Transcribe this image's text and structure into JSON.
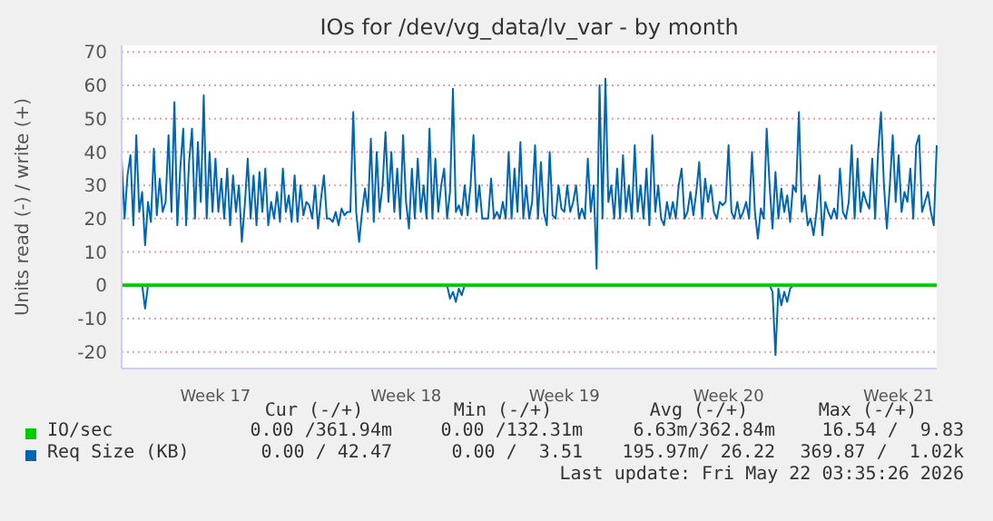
{
  "chart_data": {
    "type": "line",
    "title": "IOs for /dev/vg_data/lv_var - by month",
    "ylabel": "Units read (-) / write (+)",
    "categories": [
      null,
      null,
      null,
      null,
      null,
      null,
      null,
      null,
      null,
      null,
      null,
      null,
      null,
      null,
      null,
      null,
      null,
      null,
      null,
      null,
      null,
      null,
      null,
      null,
      null,
      null,
      null,
      null,
      null,
      null,
      null,
      null,
      "Week 17",
      null,
      null,
      null,
      null,
      null,
      null,
      null,
      null,
      null,
      null,
      null,
      null,
      null,
      null,
      null,
      null,
      null,
      null,
      null,
      null,
      null,
      null,
      null,
      null,
      null,
      null,
      null,
      null,
      null,
      null,
      null,
      null,
      null,
      null,
      null,
      null,
      null,
      null,
      null,
      null,
      null,
      null,
      null,
      null,
      null,
      null,
      null,
      null,
      null,
      null,
      null,
      null,
      null,
      null,
      null,
      null,
      null,
      null,
      null,
      null,
      null,
      null,
      null,
      null,
      "Week 18",
      null,
      null,
      null,
      null,
      null,
      null,
      null,
      null,
      null,
      null,
      null,
      null,
      null,
      null,
      null,
      null,
      null,
      null,
      null,
      null,
      null,
      null,
      null,
      null,
      null,
      null,
      null,
      null,
      null,
      null,
      null,
      null,
      null,
      null,
      null,
      null,
      null,
      null,
      null,
      null,
      null,
      null,
      null,
      null,
      null,
      null,
      null,
      null,
      null,
      null,
      null,
      null,
      null,
      "Week 19",
      null,
      null,
      null,
      null,
      null,
      null,
      null,
      null,
      null,
      null,
      null,
      null,
      null,
      null,
      null,
      null,
      null,
      null,
      null,
      null,
      null,
      null,
      null,
      null,
      null,
      null,
      null,
      null,
      null,
      null,
      null,
      null,
      null,
      null,
      null,
      null,
      null,
      null,
      null,
      null,
      null,
      null,
      null,
      null,
      null,
      null,
      null,
      null,
      null,
      null,
      null,
      null,
      null,
      null,
      null,
      "Week 20",
      null,
      null,
      null,
      null,
      null,
      null,
      null,
      null,
      null,
      null,
      null,
      null,
      null,
      null,
      null,
      null,
      null,
      null,
      null,
      null,
      null,
      null,
      null,
      null,
      null,
      null,
      null,
      null,
      null,
      null,
      null,
      null,
      null,
      null,
      null,
      null,
      null,
      null,
      null,
      null,
      null,
      null,
      null,
      null,
      null,
      null,
      null,
      null,
      null,
      null,
      null,
      null,
      null,
      null,
      null,
      null,
      null,
      "Week 21",
      null,
      null,
      null,
      null,
      null,
      null,
      null,
      null,
      null,
      null,
      null,
      null,
      null
    ],
    "ylim": [
      -25,
      72
    ],
    "yticks": [
      -20,
      -10,
      0,
      10,
      20,
      30,
      40,
      50,
      60,
      70
    ],
    "grid": "y",
    "legend": "bottom",
    "marker": "none",
    "series": [
      {
        "name": "IO/sec",
        "color": "#00cc00",
        "values": [
          0,
          0,
          0,
          0,
          0,
          0,
          0,
          0,
          0,
          0,
          0,
          0,
          0,
          0,
          0,
          0,
          0,
          0,
          0,
          0,
          0,
          0,
          0,
          0,
          0,
          0,
          0,
          0,
          0,
          0,
          0,
          0,
          0,
          0,
          0,
          0,
          0,
          0,
          0,
          0,
          0,
          0,
          0,
          0,
          0,
          0,
          0,
          0,
          0,
          0,
          0,
          0,
          0,
          0,
          0,
          0,
          0,
          0,
          0,
          0,
          0,
          0,
          0,
          0,
          0,
          0,
          0,
          0,
          0,
          0,
          0,
          0,
          0,
          0,
          0,
          0,
          0,
          0,
          0,
          0,
          0,
          0,
          0,
          0,
          0,
          0,
          0,
          0,
          0,
          0,
          0,
          0,
          0,
          0,
          0,
          0,
          0,
          0,
          0,
          0,
          0,
          0,
          0,
          0,
          0,
          0,
          0,
          0,
          0,
          0,
          0,
          0,
          0,
          0,
          0,
          0,
          0,
          0,
          0,
          0,
          0,
          0,
          0,
          0,
          0,
          0,
          0,
          0,
          0,
          0,
          0,
          0,
          0,
          0,
          0,
          0,
          0,
          0,
          0,
          0,
          0,
          0,
          0,
          0,
          0,
          0,
          0,
          0,
          0,
          0,
          0,
          0,
          0,
          0,
          0,
          0,
          0,
          0,
          0,
          0,
          0,
          0,
          0,
          0,
          0,
          0,
          0,
          0,
          0,
          0,
          0,
          0,
          0,
          0,
          0,
          0,
          0,
          0,
          0,
          0,
          0,
          0,
          0,
          0,
          0,
          0,
          0,
          0,
          0,
          0,
          0,
          0,
          0,
          0,
          0,
          0,
          0,
          0,
          0,
          0,
          0,
          0,
          0,
          0,
          0,
          0,
          0,
          0,
          0,
          0,
          0,
          0,
          0,
          0,
          0,
          0,
          0,
          0,
          0,
          0,
          0,
          0,
          0,
          0,
          0,
          0,
          0,
          0,
          0,
          0,
          0,
          0,
          0,
          0,
          0,
          0,
          0,
          0,
          0,
          0,
          0,
          0,
          0,
          0,
          0,
          0,
          0,
          0,
          0,
          0,
          0,
          0,
          0,
          0,
          0,
          0,
          0,
          0,
          0,
          0,
          0,
          0,
          0,
          0,
          0,
          0,
          0,
          0,
          0,
          0,
          0,
          0,
          0,
          0,
          0,
          0,
          0,
          0,
          0
        ]
      },
      {
        "name": "Req Size (KB)",
        "color": "#0066b3",
        "values": [
          38,
          20,
          33,
          39,
          18,
          45,
          22,
          28,
          12,
          25,
          19,
          41,
          21,
          32,
          22,
          25,
          45,
          22,
          55,
          18,
          35,
          47,
          18,
          37,
          47,
          20,
          43,
          25,
          57,
          20,
          40,
          22,
          38,
          22,
          32,
          20,
          35,
          18,
          33,
          22,
          30,
          13,
          24,
          38,
          20,
          33,
          18,
          34,
          22,
          35,
          18,
          25,
          20,
          28,
          19,
          35,
          22,
          27,
          19,
          33,
          19,
          30,
          21,
          25,
          24,
          20,
          30,
          17,
          26,
          33,
          20,
          20,
          19,
          22,
          18,
          23,
          21,
          22,
          22,
          52,
          22,
          13,
          22,
          29,
          22,
          44,
          19,
          40,
          22,
          30,
          46,
          25,
          40,
          22,
          35,
          20,
          45,
          25,
          17,
          35,
          20,
          38,
          22,
          30,
          20,
          47,
          20,
          38,
          22,
          30,
          35,
          20,
          28,
          59,
          22,
          24,
          21,
          30,
          21,
          30,
          45,
          22,
          30,
          20,
          20,
          20,
          32,
          20,
          22,
          20,
          25,
          20,
          40,
          20,
          35,
          22,
          43,
          20,
          30,
          20,
          25,
          42,
          20,
          37,
          22,
          18,
          40,
          21,
          20,
          30,
          23,
          22,
          30,
          22,
          25,
          30,
          20,
          23,
          20,
          38,
          22,
          30,
          5,
          60,
          20,
          62,
          25,
          30,
          20,
          35,
          20,
          39,
          22,
          30,
          20,
          42,
          22,
          30,
          20,
          35,
          18,
          45,
          22,
          30,
          20,
          18,
          25,
          20,
          25,
          20,
          30,
          35,
          20,
          22,
          28,
          21,
          28,
          37,
          20,
          32,
          25,
          30,
          22,
          20,
          25,
          24,
          25,
          42,
          22,
          20,
          25,
          20,
          22,
          25,
          20,
          40,
          22,
          14,
          23,
          20,
          47,
          30,
          17,
          34,
          20,
          29,
          22,
          27,
          19,
          30,
          28,
          52,
          22,
          27,
          18,
          20,
          15,
          22,
          33,
          15,
          25,
          22,
          20,
          23,
          20,
          35,
          22,
          20,
          25,
          42,
          20,
          38,
          22,
          28,
          25,
          23,
          38,
          20,
          40,
          52,
          30,
          17,
          30,
          45,
          25,
          39,
          22,
          28,
          25,
          35,
          20,
          42,
          45,
          22,
          25,
          28,
          22,
          18,
          42
        ]
      },
      {
        "color": "#0066b3",
        "values": [
          null,
          null,
          null,
          null,
          null,
          null,
          null,
          0,
          -7,
          0,
          null,
          null,
          null,
          null,
          null,
          null,
          null,
          null,
          null,
          null,
          null,
          null,
          null,
          null,
          null,
          null,
          null,
          null,
          null,
          null,
          null,
          null,
          null,
          null,
          null,
          null,
          null,
          null,
          null,
          null,
          null,
          null,
          null,
          null,
          null,
          null,
          null,
          null,
          null,
          null,
          null,
          null,
          null,
          null,
          null,
          null,
          null,
          null,
          null,
          null,
          null,
          null,
          null,
          null,
          null,
          null,
          null,
          null,
          null,
          null,
          null,
          null,
          null,
          null,
          null,
          null,
          null,
          null,
          null,
          null,
          null,
          null,
          null,
          null,
          null,
          null,
          null,
          null,
          null,
          null,
          null,
          null,
          null,
          null,
          null,
          null,
          null,
          null,
          null,
          null,
          null,
          null,
          null,
          null,
          null,
          null,
          null,
          null,
          null,
          null,
          null,
          0,
          -4,
          -2,
          -5,
          -1,
          -3,
          0,
          null,
          null,
          null,
          null,
          null,
          null,
          null,
          null,
          null,
          null,
          null,
          null,
          null,
          null,
          null,
          null,
          null,
          null,
          null,
          null,
          null,
          null,
          null,
          null,
          null,
          null,
          null,
          null,
          null,
          null,
          null,
          null,
          null,
          null,
          null,
          null,
          null,
          null,
          null,
          null,
          null,
          null,
          null,
          null,
          null,
          null,
          null,
          null,
          null,
          null,
          null,
          null,
          null,
          null,
          null,
          null,
          null,
          null,
          null,
          null,
          null,
          null,
          null,
          null,
          null,
          null,
          null,
          null,
          null,
          null,
          null,
          null,
          null,
          null,
          null,
          null,
          null,
          null,
          null,
          null,
          null,
          null,
          null,
          null,
          null,
          null,
          null,
          null,
          null,
          null,
          null,
          null,
          null,
          null,
          null,
          null,
          null,
          null,
          null,
          null,
          null,
          null,
          null,
          0,
          -2,
          -21,
          -1,
          -6,
          -2,
          -5,
          -1,
          0,
          null,
          null,
          null,
          null,
          null,
          null,
          null,
          null,
          null,
          null,
          null,
          null,
          null,
          null,
          null,
          null,
          null,
          null,
          null,
          null,
          null,
          null,
          null,
          null,
          null,
          null,
          null,
          null,
          null,
          null,
          null,
          null,
          null,
          null,
          null,
          null,
          null,
          null,
          null,
          null,
          null,
          null,
          null,
          null,
          null,
          null,
          null,
          null,
          null
        ]
      }
    ],
    "annotations": [
      "Cur (-/+)",
      "Min (-/+)",
      "Avg (-/+)",
      "Max (-/+)",
      "0.00 /361.94m",
      "0.00 /132.31m",
      "6.63m/362.84m",
      "16.54 /  9.83",
      "0.00 / 42.47",
      "0.00 /  3.51",
      "195.97m/ 26.22",
      "369.87 /  1.02k",
      "Last update: Fri May 22 03:35:26 2026"
    ]
  }
}
